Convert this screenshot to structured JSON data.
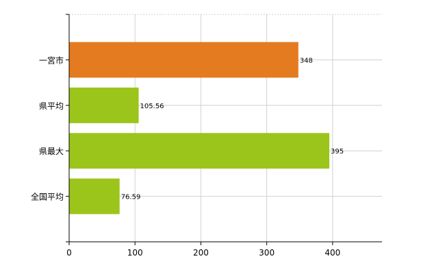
{
  "chart_data": {
    "type": "bar",
    "orientation": "horizontal",
    "categories": [
      "一宮市",
      "県平均",
      "県最大",
      "全国平均"
    ],
    "values": [
      348,
      105.56,
      395,
      76.59
    ],
    "value_labels": [
      "348",
      "105.56",
      "395",
      "76.59"
    ],
    "bar_colors": [
      "#e57b20",
      "#9cc51b",
      "#9cc51b",
      "#9cc51b"
    ],
    "title": "",
    "xlabel": "",
    "ylabel": "",
    "xlim": [
      0,
      475
    ],
    "x_ticks": [
      0,
      100,
      200,
      300,
      400
    ],
    "x_tick_labels": [
      "0",
      "100",
      "200",
      "300",
      "400"
    ],
    "grid": true,
    "legend": "none"
  }
}
